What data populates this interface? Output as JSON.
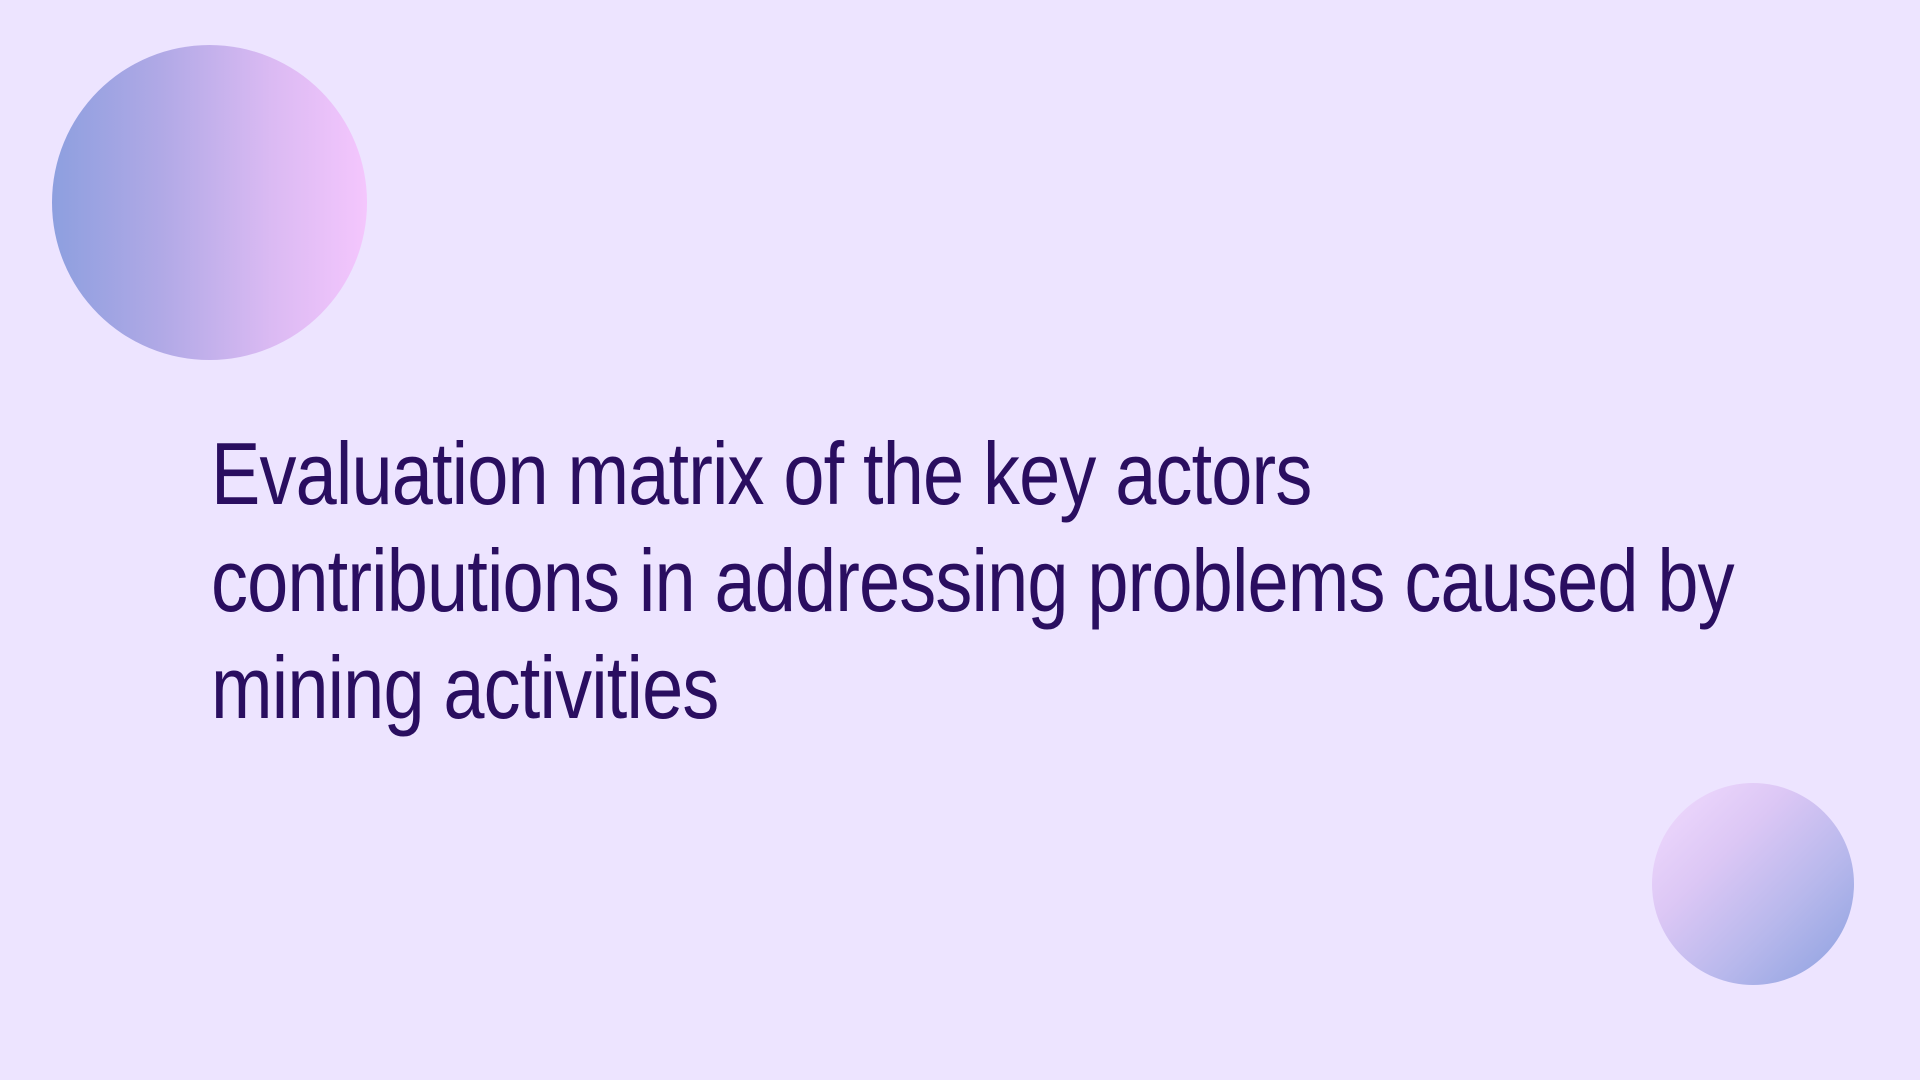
{
  "slide": {
    "title_lines": [
      "Evaluation matrix of the key actors",
      "contributions in addressing problems caused by",
      "mining activities"
    ]
  },
  "colors": {
    "background": "#ede4ff",
    "title_text": "#2a0e60",
    "circle_large_left": "#8d9fdf",
    "circle_large_right": "#f4c6fd",
    "circle_small_top": "#f3dcff",
    "circle_small_bottom": "#8aa0df"
  }
}
